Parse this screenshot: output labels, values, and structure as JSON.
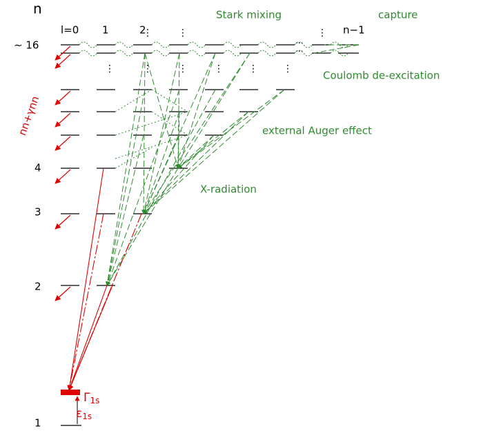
{
  "axis_label": "n",
  "level_labels": [
    "∼ 16",
    "4",
    "3",
    "2",
    "1"
  ],
  "l_labels": [
    "l=0",
    "1",
    "2",
    "n−1"
  ],
  "processes": {
    "stark": "Stark mixing",
    "capture": "capture",
    "coulomb": "Coulomb de-excitation",
    "auger": "external Auger effect",
    "xray": "X-radiation",
    "nuclear": "nn+γnn"
  },
  "width": {
    "symbol": "Γ",
    "subscript": "1s"
  },
  "shift": {
    "symbol": "ε",
    "subscript": "1s"
  }
}
